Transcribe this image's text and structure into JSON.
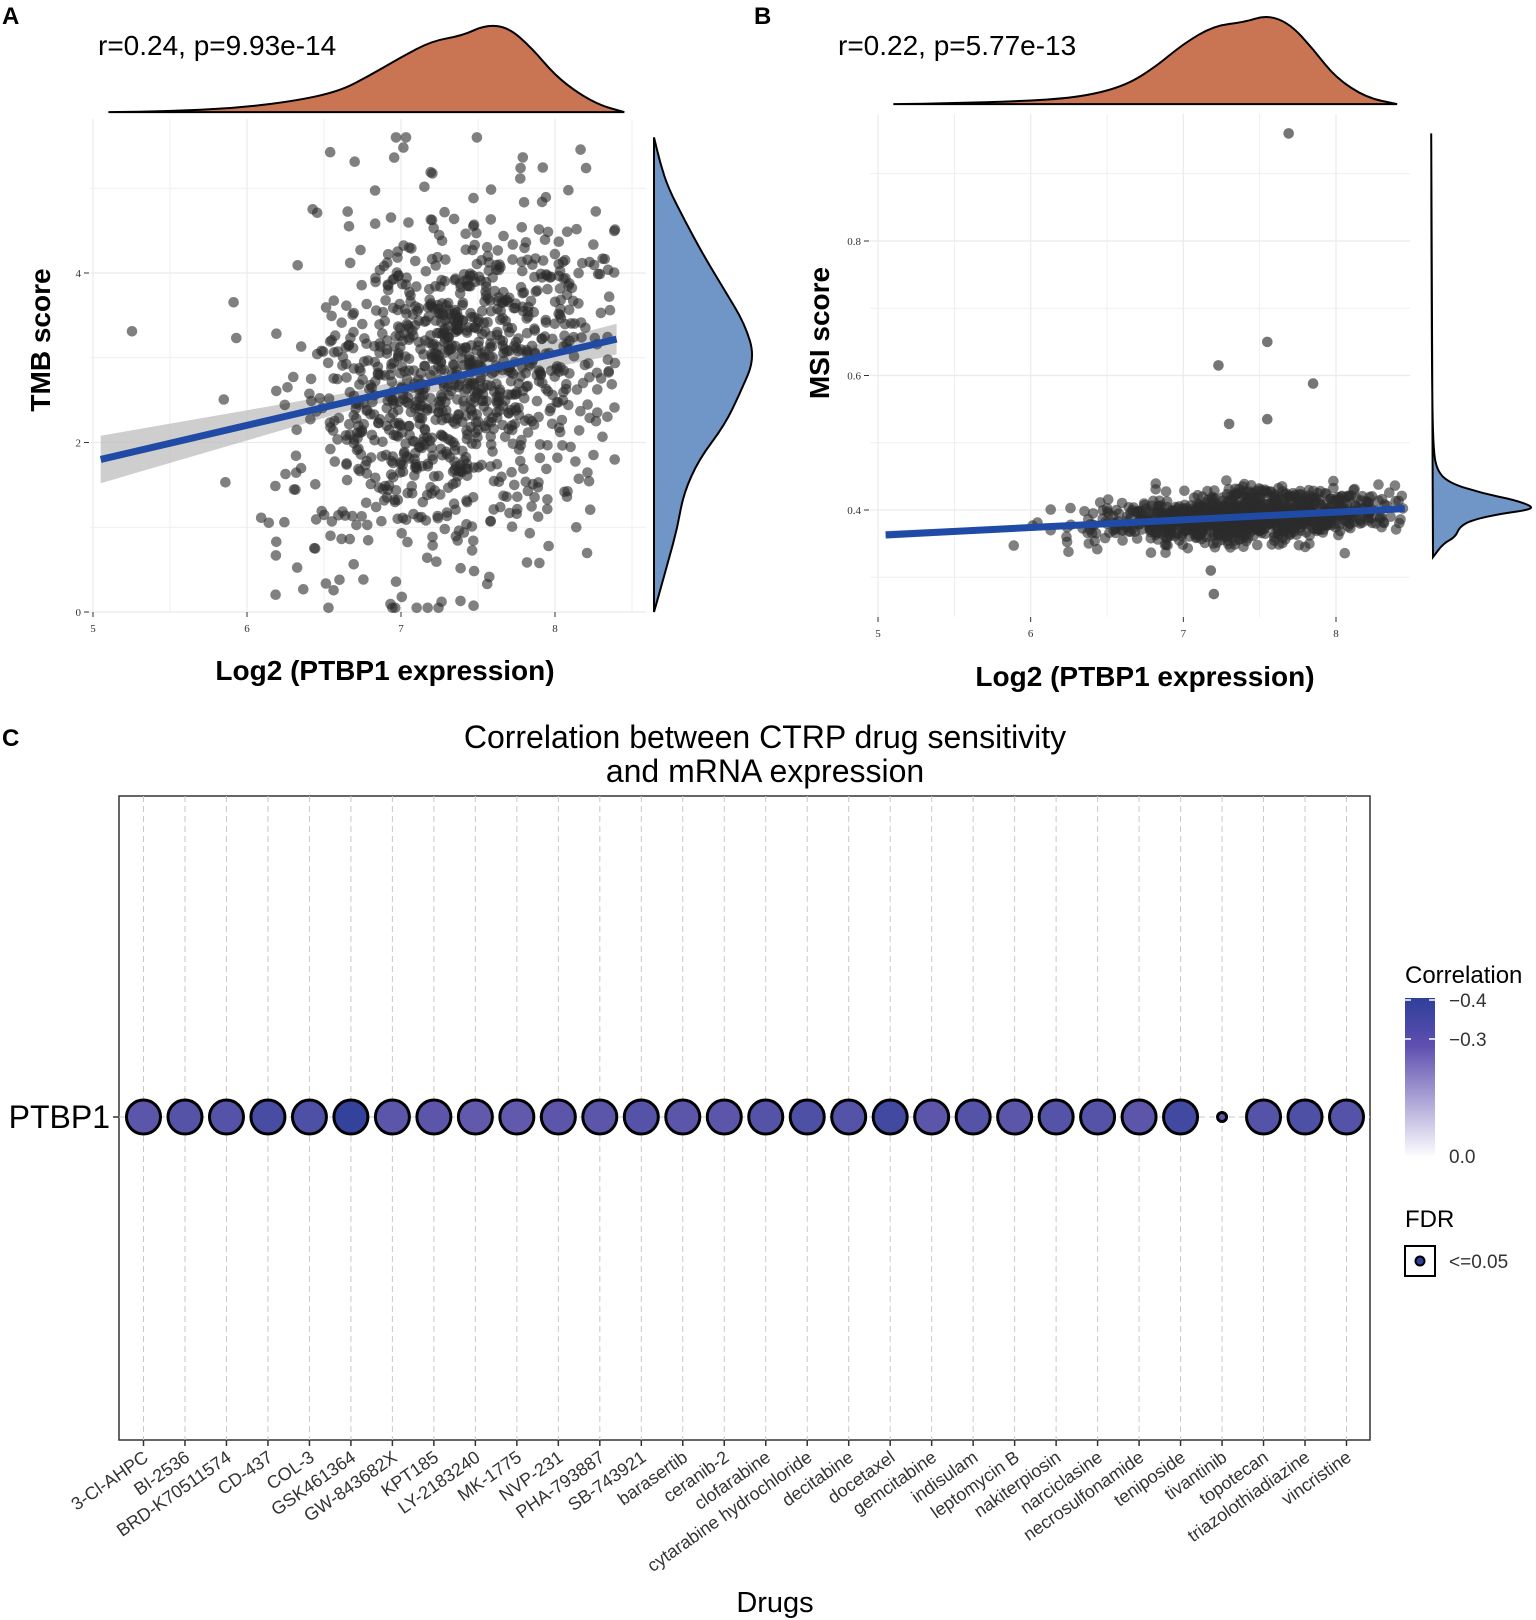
{
  "colors": {
    "density_top": "#c97452",
    "density_right": "#7096c8",
    "fit_line": "#1f4aa5",
    "ci_band": "#bdbdbd",
    "point": "#2b2b2b",
    "grid": "#ebebeb",
    "corr_low": "#2e3f9a",
    "corr_high": "#ffffff"
  },
  "panels": {
    "a_label": "A",
    "b_label": "B",
    "c_label": "C"
  },
  "chart_data": [
    {
      "id": "A",
      "type": "scatter",
      "title": "r=0.24, p=9.93e-14",
      "xlabel": "Log2 (PTBP1 expression)",
      "ylabel": "TMB score",
      "xticks": [
        5,
        6,
        7,
        8
      ],
      "yticks": [
        0,
        2,
        4
      ],
      "xlim": [
        4.95,
        8.6
      ],
      "ylim": [
        0,
        5.75
      ],
      "fit": {
        "x": [
          5.05,
          8.4
        ],
        "y": [
          1.8,
          3.22
        ],
        "band_halfwidth": [
          0.28,
          0.1,
          0.18
        ]
      },
      "n_points": 1100,
      "distribution": {
        "center_x": 7.35,
        "sd_x": 0.5,
        "slope": 0.42,
        "intercept_at_x0": -0.3,
        "resid_sd": 1.0,
        "y_min": 0.05,
        "y_max": 5.6
      },
      "marginal_x": {
        "x": [
          5.1,
          5.5,
          5.9,
          6.3,
          6.6,
          6.8,
          7.0,
          7.2,
          7.4,
          7.55,
          7.7,
          7.85,
          8.0,
          8.15,
          8.3,
          8.45
        ],
        "density": [
          0.01,
          0.02,
          0.05,
          0.13,
          0.24,
          0.42,
          0.62,
          0.8,
          0.86,
          0.98,
          0.95,
          0.72,
          0.42,
          0.22,
          0.08,
          0.01
        ]
      },
      "marginal_y": {
        "y": [
          0.0,
          0.3,
          0.6,
          1.0,
          1.4,
          1.8,
          2.2,
          2.6,
          3.0,
          3.4,
          3.8,
          4.2,
          4.6,
          5.0,
          5.3,
          5.6
        ],
        "density": [
          0.01,
          0.08,
          0.15,
          0.24,
          0.3,
          0.45,
          0.7,
          0.86,
          1.0,
          0.9,
          0.7,
          0.5,
          0.32,
          0.15,
          0.07,
          0.01
        ]
      }
    },
    {
      "id": "B",
      "type": "scatter",
      "title": "r=0.22, p=5.77e-13",
      "xlabel": "Log2 (PTBP1 expression)",
      "ylabel": "MSI score",
      "xticks": [
        5,
        6,
        7,
        8
      ],
      "yticks": [
        0.4,
        0.6,
        0.8
      ],
      "xlim": [
        4.95,
        8.5
      ],
      "ylim": [
        0.26,
        0.98
      ],
      "fit": {
        "x": [
          5.05,
          8.45
        ],
        "y": [
          0.363,
          0.402
        ],
        "band_halfwidth": [
          0.006,
          0.002,
          0.004
        ]
      },
      "n_points": 1100,
      "distribution": {
        "center_x": 7.4,
        "sd_x": 0.45,
        "slope": 0.0115,
        "intercept_at_x0": 0.305,
        "resid_sd": 0.018,
        "y_min": 0.33,
        "y_max": 0.445
      },
      "outliers": [
        {
          "x": 7.69,
          "y": 0.96
        },
        {
          "x": 7.55,
          "y": 0.65
        },
        {
          "x": 7.23,
          "y": 0.615
        },
        {
          "x": 7.85,
          "y": 0.588
        },
        {
          "x": 7.55,
          "y": 0.535
        },
        {
          "x": 7.3,
          "y": 0.528
        },
        {
          "x": 7.18,
          "y": 0.31
        },
        {
          "x": 7.2,
          "y": 0.275
        }
      ],
      "marginal_x": {
        "x": [
          5.1,
          5.5,
          5.9,
          6.3,
          6.6,
          6.8,
          7.0,
          7.2,
          7.4,
          7.55,
          7.7,
          7.85,
          8.0,
          8.2,
          8.4
        ],
        "density": [
          0.01,
          0.02,
          0.04,
          0.08,
          0.2,
          0.4,
          0.68,
          0.88,
          0.92,
          1.0,
          0.9,
          0.62,
          0.3,
          0.08,
          0.01
        ]
      },
      "marginal_y": {
        "y": [
          0.33,
          0.35,
          0.36,
          0.375,
          0.385,
          0.395,
          0.4,
          0.405,
          0.415,
          0.425,
          0.44,
          0.46,
          0.5,
          0.6,
          0.75,
          0.9,
          0.96
        ],
        "density": [
          0.02,
          0.12,
          0.24,
          0.28,
          0.4,
          0.7,
          0.95,
          1.0,
          0.82,
          0.5,
          0.18,
          0.05,
          0.02,
          0.01,
          0.005,
          0.003,
          0.002
        ]
      }
    },
    {
      "id": "C",
      "type": "bubble",
      "title": [
        "Correlation between CTRP drug sensitivity",
        "and mRNA expression"
      ],
      "xlabel": "Drugs",
      "gene": "PTBP1",
      "drugs": [
        "3-Cl-AHPC",
        "BI-2536",
        "BRD-K70511574",
        "CD-437",
        "COL-3",
        "GSK461364",
        "GW-843682X",
        "KPT185",
        "LY-2183240",
        "MK-1775",
        "NVP-231",
        "PHA-793887",
        "SB-743921",
        "barasertib",
        "ceranib-2",
        "clofarabine",
        "cytarabine hydrochloride",
        "decitabine",
        "docetaxel",
        "gemcitabine",
        "indisulam",
        "leptomycin B",
        "nakiterpiosin",
        "narciclasine",
        "necrosulfonamide",
        "teniposide",
        "tivantinib",
        "topotecan",
        "triazolothiadiazine",
        "vincristine"
      ],
      "correlation": [
        -0.33,
        -0.34,
        -0.34,
        -0.36,
        -0.35,
        -0.39,
        -0.33,
        -0.33,
        -0.32,
        -0.32,
        -0.33,
        -0.33,
        -0.34,
        -0.33,
        -0.33,
        -0.34,
        -0.35,
        -0.34,
        -0.37,
        -0.33,
        -0.34,
        -0.33,
        -0.34,
        -0.34,
        -0.33,
        -0.37,
        -0.33,
        -0.34,
        -0.35,
        -0.34
      ],
      "neg_log10_fdr": [
        5.5,
        5.5,
        5.5,
        5.5,
        5.5,
        5.5,
        5.5,
        5.5,
        5.5,
        5.5,
        5.5,
        5.5,
        5.5,
        5.5,
        5.5,
        5.5,
        5.5,
        5.5,
        5.5,
        5.5,
        5.5,
        5.5,
        5.5,
        5.5,
        5.5,
        5.5,
        1.4,
        5.5,
        5.5,
        5.5
      ],
      "legend": {
        "color_title": "Correlation",
        "color_ticks": [
          "−0.4",
          "−0.3",
          "0.0"
        ],
        "color_tick_values": [
          -0.4,
          -0.3,
          0.0
        ],
        "size_title": "FDR",
        "size_label": "<=0.05"
      }
    }
  ]
}
